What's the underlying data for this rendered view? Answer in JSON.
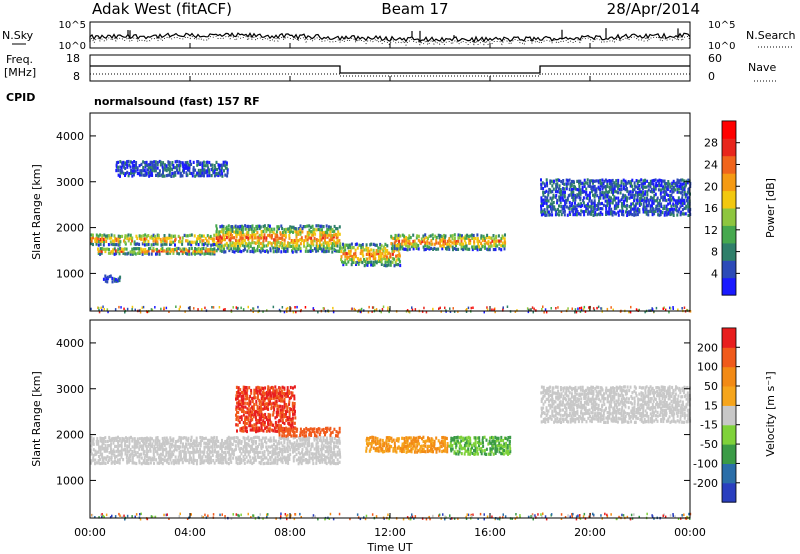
{
  "header": {
    "radar": "Adak West (fitACF)",
    "beam": "Beam 17",
    "date": "28/Apr/2014"
  },
  "noise_panel": {
    "left_label": "N.Sky",
    "right_label": "N.Search",
    "left_ticks": [
      "10^5",
      "10^0"
    ],
    "right_ticks": [
      "10^5",
      "10^0"
    ]
  },
  "freq_panel": {
    "left_label_1": "Freq.",
    "left_label_2": "[MHz]",
    "right_label": "Nave",
    "left_ticks": [
      "18",
      "8"
    ],
    "right_ticks": [
      "60",
      "0"
    ],
    "cpid_label": "CPID",
    "cpid_text": "normalsound (fast) 157 RF"
  },
  "chart_data": [
    {
      "type": "heatmap",
      "name": "power",
      "ylabel": "Slant Range [km]",
      "ylim": [
        180,
        4500
      ],
      "yticks": [
        "4000",
        "3000",
        "2000",
        "1000"
      ],
      "colorbar_label": "Power [dB]",
      "colorbar_ticks": [
        "28",
        "24",
        "20",
        "16",
        "12",
        "8",
        "4"
      ],
      "colorbar_colors": [
        "#1a1aff",
        "#2c4ab8",
        "#2f7f6a",
        "#46a84e",
        "#8ec63f",
        "#f2c80f",
        "#f59a13",
        "#f0651c",
        "#e8261c",
        "#ff0000"
      ],
      "bands": [
        {
          "x0": 0.0,
          "x1": 5.2,
          "y0": 1650,
          "y1": 1900
        },
        {
          "x0": 0.2,
          "x1": 5.0,
          "y0": 1450,
          "y1": 1600
        },
        {
          "x0": 5.0,
          "x1": 10.0,
          "y0": 1500,
          "y1": 2100
        },
        {
          "x0": 10.0,
          "x1": 12.4,
          "y0": 1200,
          "y1": 1700
        },
        {
          "x0": 12.0,
          "x1": 16.6,
          "y0": 1550,
          "y1": 1900
        },
        {
          "x0": 1.0,
          "x1": 5.5,
          "y0": 3150,
          "y1": 3500
        },
        {
          "x0": 18.0,
          "x1": 24.0,
          "y0": 2300,
          "y1": 3100
        },
        {
          "x0": 0.5,
          "x1": 1.2,
          "y0": 850,
          "y1": 1000
        }
      ]
    },
    {
      "type": "heatmap",
      "name": "velocity",
      "xlabel": "Time UT",
      "xticks": [
        "00:00",
        "04:00",
        "08:00",
        "12:00",
        "16:00",
        "20:00",
        "00:00"
      ],
      "ylabel": "Slant Range [km]",
      "ylim": [
        180,
        4500
      ],
      "yticks": [
        "4000",
        "3000",
        "2000",
        "1000"
      ],
      "colorbar_label": "Velocity [m s⁻¹]",
      "colorbar_ticks": [
        "200",
        "100",
        "50",
        "15",
        "-15",
        "-50",
        "-100",
        "-200"
      ],
      "colorbar_colors": [
        "#2a3fbf",
        "#2b6ea8",
        "#3b9b46",
        "#7fd23a",
        "#c8c8c8",
        "#f6a51c",
        "#f28a15",
        "#f05a1b",
        "#e81e1e"
      ],
      "bands": [
        {
          "x0": 0.0,
          "x1": 10.0,
          "y0": 1400,
          "y1": 2000
        },
        {
          "x0": 5.8,
          "x1": 8.2,
          "y0": 2100,
          "y1": 3100
        },
        {
          "x0": 7.5,
          "x1": 10.0,
          "y0": 2000,
          "y1": 2200
        },
        {
          "x0": 11.0,
          "x1": 14.3,
          "y0": 1650,
          "y1": 2000
        },
        {
          "x0": 14.3,
          "x1": 16.8,
          "y0": 1600,
          "y1": 2000
        },
        {
          "x0": 18.0,
          "x1": 24.0,
          "y0": 2300,
          "y1": 3100
        }
      ]
    }
  ]
}
